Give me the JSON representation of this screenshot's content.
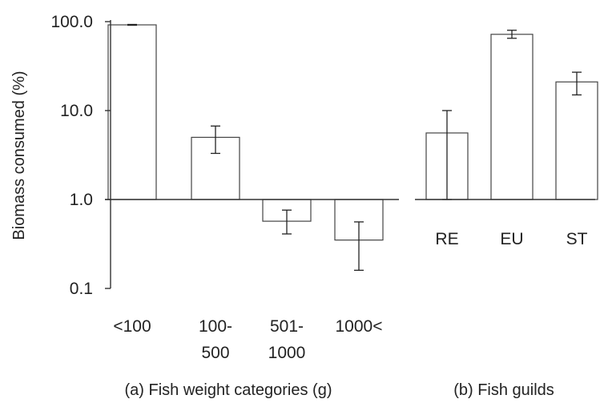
{
  "chart_data": [
    {
      "type": "bar",
      "title": "(a) Fish weight categories (g)",
      "ylabel": "Biomass consumed (%)",
      "yscale": "log",
      "ylim": [
        0.1,
        100
      ],
      "yticks": [
        0.1,
        1,
        10,
        100
      ],
      "ytick_labels": [
        "0.1",
        "1.0",
        "10.0",
        "100.0"
      ],
      "grid": false,
      "categories": [
        {
          "line1": "<100",
          "line2": ""
        },
        {
          "line1": "100-",
          "line2": "500"
        },
        {
          "line1": "501-",
          "line2": "1000"
        },
        {
          "line1": "1000<",
          "line2": ""
        }
      ],
      "values": [
        92,
        5,
        0.57,
        0.35
      ],
      "error_low": [
        91,
        3.3,
        0.41,
        0.16
      ],
      "error_high": [
        93,
        6.7,
        0.76,
        0.56
      ]
    },
    {
      "type": "bar",
      "title": "(b) Fish guilds",
      "yscale": "log",
      "ylim": [
        0.1,
        100
      ],
      "grid": false,
      "categories": [
        {
          "line1": "RE",
          "line2": ""
        },
        {
          "line1": "EU",
          "line2": ""
        },
        {
          "line1": "ST",
          "line2": ""
        }
      ],
      "values": [
        5.6,
        72,
        21
      ],
      "error_low": [
        1.0,
        65,
        15
      ],
      "error_high": [
        10,
        80,
        27
      ]
    }
  ],
  "style": {
    "bar_fill": "#ffffff",
    "bar_stroke": "#444444",
    "axis_color": "#333333",
    "text_color": "#222222"
  }
}
